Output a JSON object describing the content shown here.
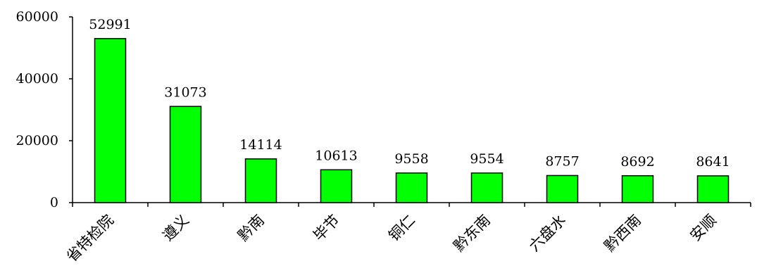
{
  "chart_data": {
    "type": "bar",
    "title": "",
    "xlabel": "",
    "ylabel": "",
    "categories": [
      "省特检院",
      "遵义",
      "黔南",
      "毕节",
      "铜仁",
      "黔东南",
      "六盘水",
      "黔西南",
      "安顺"
    ],
    "values": [
      52991,
      31073,
      14114,
      10613,
      9558,
      9554,
      8757,
      8692,
      8641
    ],
    "data_labels": [
      "52991",
      "31073",
      "14114",
      "10613",
      "9558",
      "9554",
      "8757",
      "8692",
      "8641"
    ],
    "ylim": [
      0,
      60000
    ],
    "yticks": [
      0,
      20000,
      40000,
      60000
    ],
    "ytick_labels": [
      "0",
      "20000",
      "40000",
      "60000"
    ],
    "grid": false,
    "legend": "none",
    "bar_color": "#00ff00",
    "bar_edge_color": "#000000"
  }
}
